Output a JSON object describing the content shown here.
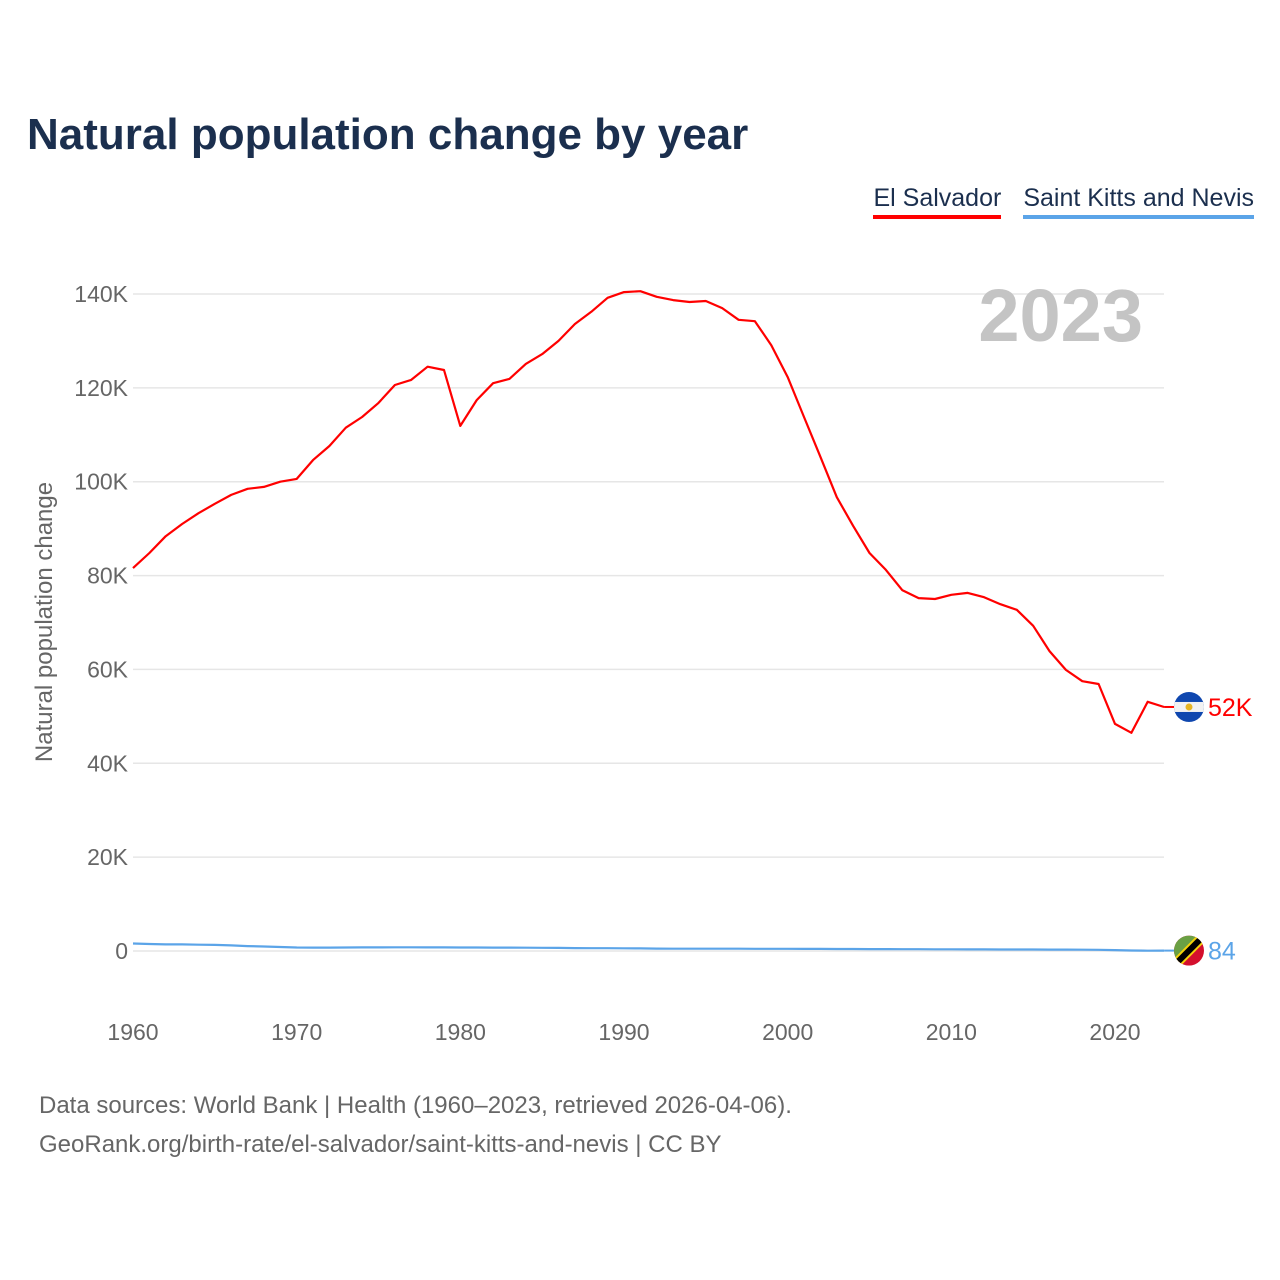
{
  "chart_data": {
    "type": "line",
    "title": "Natural population change by year",
    "ylabel": "Natural population change",
    "xlabel": "",
    "year_watermark": "2023",
    "xlim": [
      1960,
      2023
    ],
    "ylim": [
      -10000,
      145000
    ],
    "x_ticks": [
      1960,
      1970,
      1980,
      1990,
      2000,
      2010,
      2020
    ],
    "y_ticks": [
      0,
      20000,
      40000,
      60000,
      80000,
      100000,
      120000,
      140000
    ],
    "y_tick_labels": [
      "0",
      "20K",
      "40K",
      "60K",
      "80K",
      "100K",
      "120K",
      "140K"
    ],
    "grid": true,
    "legend_position": "top-right",
    "colors": {
      "El Salvador": "#ff0000",
      "Saint Kitts and Nevis": "#5ba4e8"
    },
    "x": [
      1960,
      1961,
      1962,
      1963,
      1964,
      1965,
      1966,
      1967,
      1968,
      1969,
      1970,
      1971,
      1972,
      1973,
      1974,
      1975,
      1976,
      1977,
      1978,
      1979,
      1980,
      1981,
      1982,
      1983,
      1984,
      1985,
      1986,
      1987,
      1988,
      1989,
      1990,
      1991,
      1992,
      1993,
      1994,
      1995,
      1996,
      1997,
      1998,
      1999,
      2000,
      2001,
      2002,
      2003,
      2004,
      2005,
      2006,
      2007,
      2008,
      2009,
      2010,
      2011,
      2012,
      2013,
      2014,
      2015,
      2016,
      2017,
      2018,
      2019,
      2020,
      2021,
      2022,
      2023
    ],
    "series": [
      {
        "name": "El Salvador",
        "end_label": "52K",
        "values": [
          81600,
          84800,
          88400,
          91000,
          93300,
          95300,
          97200,
          98500,
          98900,
          100000,
          100600,
          104600,
          107600,
          111500,
          113800,
          116800,
          120600,
          121700,
          124500,
          123800,
          111900,
          117400,
          121000,
          121900,
          125100,
          127200,
          130000,
          133600,
          136200,
          139200,
          140400,
          140600,
          139400,
          138700,
          138300,
          138500,
          137000,
          134500,
          134200,
          129100,
          122300,
          113800,
          105300,
          96700,
          90600,
          84800,
          81200,
          76900,
          75200,
          75000,
          75900,
          76300,
          75400,
          73900,
          72700,
          69300,
          63900,
          59900,
          57500,
          56900,
          48400,
          46500,
          53100,
          52000
        ]
      },
      {
        "name": "Saint Kitts and Nevis",
        "end_label": "84",
        "values": [
          1600,
          1500,
          1400,
          1400,
          1350,
          1300,
          1200,
          1050,
          950,
          850,
          750,
          720,
          720,
          750,
          760,
          770,
          780,
          780,
          760,
          760,
          740,
          740,
          730,
          720,
          700,
          680,
          650,
          620,
          600,
          590,
          580,
          560,
          520,
          500,
          500,
          500,
          480,
          480,
          470,
          470,
          460,
          450,
          440,
          430,
          420,
          410,
          400,
          390,
          380,
          370,
          360,
          350,
          340,
          330,
          320,
          310,
          300,
          290,
          280,
          260,
          200,
          100,
          60,
          84
        ]
      }
    ]
  },
  "footer": {
    "line1": "Data sources: World Bank | Health (1960–2023, retrieved 2026-04-06).",
    "line2": "GeoRank.org/birth-rate/el-salvador/saint-kitts-and-nevis | CC BY"
  }
}
